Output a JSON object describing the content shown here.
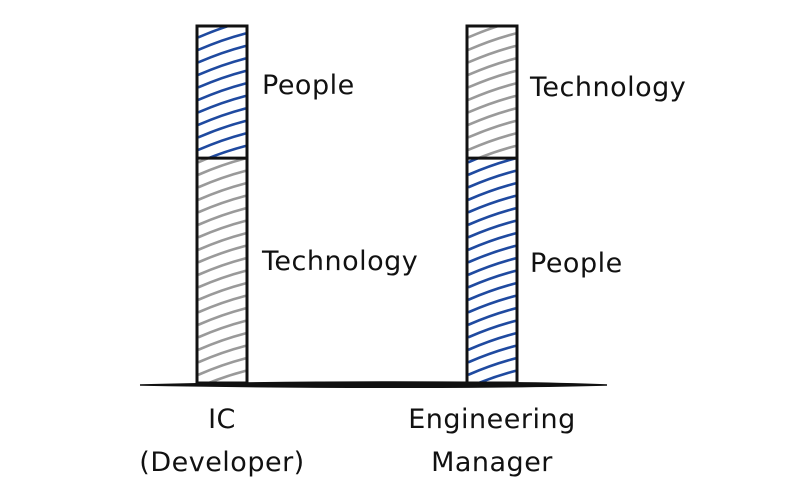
{
  "chart_data": {
    "type": "bar",
    "stacked": true,
    "title": "",
    "xlabel": "",
    "ylabel": "",
    "ylim": [
      0,
      1
    ],
    "categories": [
      {
        "line1": "IC",
        "line2": "(Developer)"
      },
      {
        "line1": "Engineering",
        "line2": "Manager"
      }
    ],
    "stacks": [
      [
        {
          "label": "Technology",
          "share": 0.63,
          "pattern": "technology"
        },
        {
          "label": "People",
          "share": 0.37,
          "pattern": "people"
        }
      ],
      [
        {
          "label": "People",
          "share": 0.63,
          "pattern": "people"
        },
        {
          "label": "Technology",
          "share": 0.37,
          "pattern": "technology"
        }
      ]
    ]
  },
  "colors": {
    "people": "#1f4aa0",
    "technology": "#9a9a9a",
    "outline": "#111111",
    "background": "#ffffff"
  }
}
